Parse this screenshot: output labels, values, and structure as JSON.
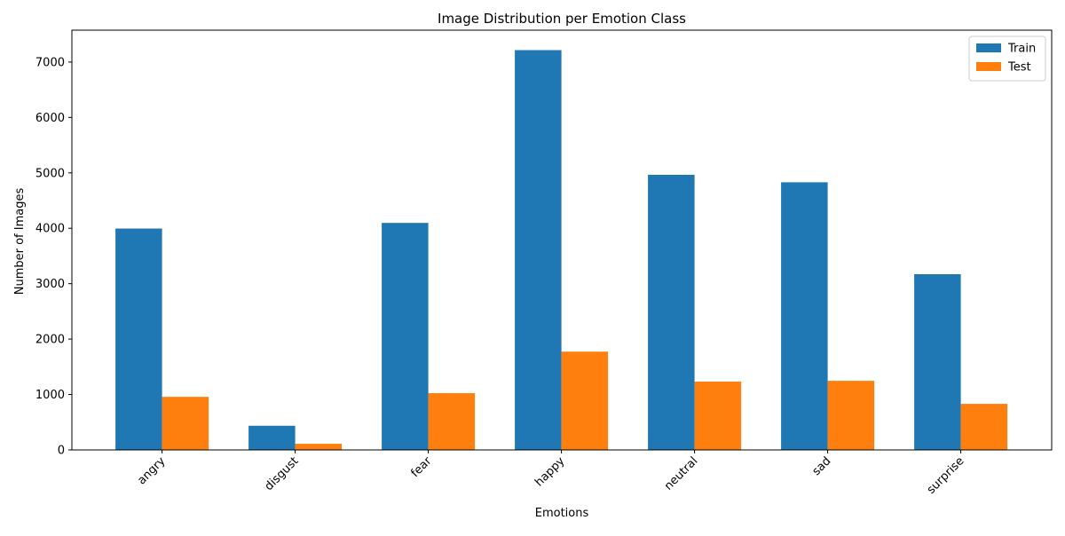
{
  "chart_data": {
    "type": "bar",
    "title": "Image Distribution per Emotion Class",
    "xlabel": "Emotions",
    "ylabel": "Number of Images",
    "categories": [
      "angry",
      "disgust",
      "fear",
      "happy",
      "neutral",
      "sad",
      "surprise"
    ],
    "series": [
      {
        "name": "Train",
        "color": "#1f77b4",
        "values": [
          3995,
          436,
          4097,
          7215,
          4965,
          4830,
          3171
        ]
      },
      {
        "name": "Test",
        "color": "#ff7f0e",
        "values": [
          958,
          111,
          1024,
          1774,
          1233,
          1247,
          831
        ]
      }
    ],
    "ylim": [
      0,
      7575
    ],
    "yticks": [
      0,
      1000,
      2000,
      3000,
      4000,
      5000,
      6000,
      7000
    ],
    "ytick_labels": [
      "0",
      "1000",
      "2000",
      "3000",
      "4000",
      "5000",
      "6000",
      "7000"
    ],
    "grid": false,
    "legend_position": "top-right",
    "xtick_rotation": 45
  }
}
